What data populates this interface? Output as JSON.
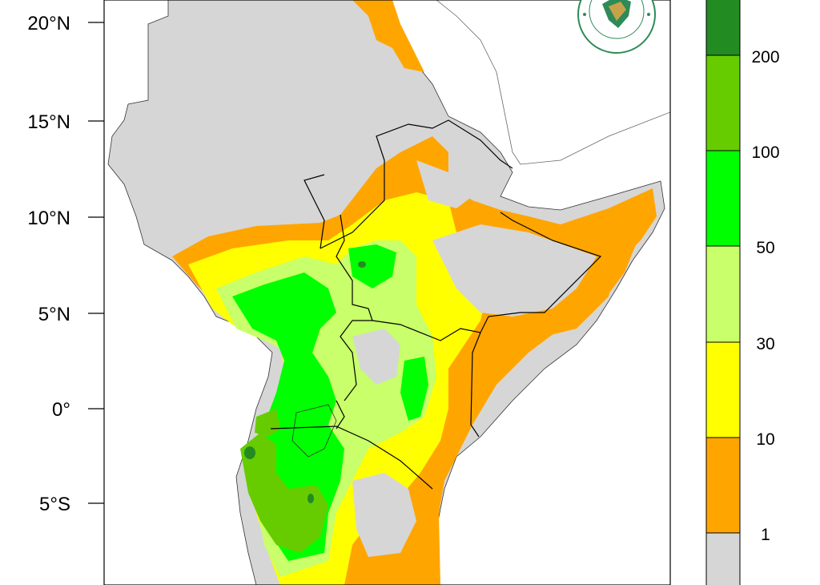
{
  "map": {
    "latitude_labels": [
      "20°N",
      "15°N",
      "10°N",
      "5°N",
      "0°",
      "5°S"
    ],
    "colors": {
      "no_rain": "#d6d6d6",
      "c1_10": "#ffa500",
      "c10_30": "#ffff00",
      "c30_50": "#c8ff6a",
      "c50_100": "#00ff00",
      "c100_200": "#66cc00",
      "c200_plus": "#228b22",
      "sea": "#ffffff",
      "border": "#000000"
    }
  },
  "colorbar": {
    "colors": [
      "#d6d6d6",
      "#ffa500",
      "#ffff00",
      "#c8ff6a",
      "#00ff00",
      "#66cc00",
      "#228b22"
    ],
    "labels": [
      "1",
      "10",
      "30",
      "50",
      "100",
      "200"
    ]
  },
  "logo": {
    "icon": "igad-logo-icon"
  }
}
